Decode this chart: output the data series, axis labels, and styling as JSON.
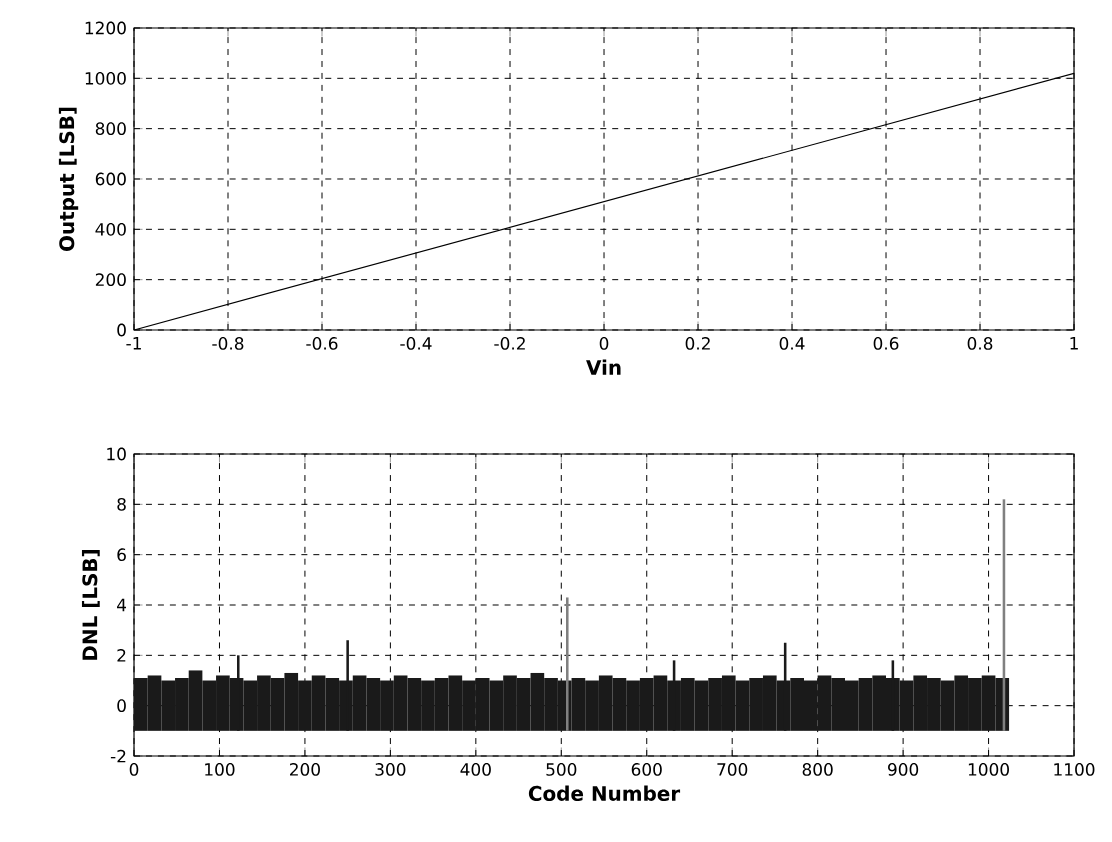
{
  "chart_data": [
    {
      "type": "line",
      "xlabel": "Vin",
      "ylabel": "Output [LSB]",
      "x": [
        -1,
        1
      ],
      "series": [
        {
          "color": "#000000",
          "values": [
            0,
            1020
          ]
        }
      ],
      "xlim": [
        -1,
        1
      ],
      "xticks": [
        -1,
        -0.8,
        -0.6,
        -0.4,
        -0.2,
        0,
        0.2,
        0.4,
        0.6,
        0.8,
        1
      ],
      "ylim": [
        0,
        1200
      ],
      "yticks": [
        0,
        200,
        400,
        600,
        800,
        1000,
        1200
      ],
      "grid": true
    },
    {
      "type": "bar",
      "xlabel": "Code Number",
      "ylabel": "DNL [LSB]",
      "series": [
        {
          "color": "#1a1a1a",
          "x": [
            0,
            16,
            32,
            48,
            64,
            80,
            96,
            112,
            128,
            144,
            160,
            176,
            192,
            208,
            224,
            240,
            256,
            272,
            288,
            304,
            320,
            336,
            352,
            368,
            384,
            400,
            416,
            432,
            448,
            464,
            480,
            496,
            512,
            528,
            544,
            560,
            576,
            592,
            608,
            624,
            640,
            656,
            672,
            688,
            704,
            720,
            736,
            752,
            768,
            784,
            800,
            816,
            832,
            848,
            864,
            880,
            896,
            912,
            928,
            944,
            960,
            976,
            992,
            1008
          ],
          "base": [
            -1,
            -1,
            -1,
            -1,
            -1,
            -1,
            -1,
            -1,
            -1,
            -1,
            -1,
            -1,
            -1,
            -1,
            -1,
            -1,
            -1,
            -1,
            -1,
            -1,
            -1,
            -1,
            -1,
            -1,
            -1,
            -1,
            -1,
            -1,
            -1,
            -1,
            -1,
            -1,
            -1,
            -1,
            -1,
            -1,
            -1,
            -1,
            -1,
            -1,
            -1,
            -1,
            -1,
            -1,
            -1,
            -1,
            -1,
            -1,
            -1,
            -1,
            -1,
            -1,
            -1,
            -1,
            -1,
            -1,
            -1,
            -1,
            -1,
            -1,
            -1,
            -1,
            -1,
            -1
          ],
          "values": [
            2.1,
            2.2,
            2.0,
            2.1,
            2.4,
            2.0,
            2.2,
            2.1,
            2.0,
            2.2,
            2.1,
            2.3,
            2.0,
            2.2,
            2.1,
            2.0,
            2.2,
            2.1,
            2.0,
            2.2,
            2.1,
            2.0,
            2.1,
            2.2,
            2.0,
            2.1,
            2.0,
            2.2,
            2.1,
            2.3,
            2.1,
            2.0,
            2.1,
            2.0,
            2.2,
            2.1,
            2.0,
            2.1,
            2.2,
            2.0,
            2.1,
            2.0,
            2.1,
            2.2,
            2.0,
            2.1,
            2.2,
            2.0,
            2.1,
            2.0,
            2.2,
            2.1,
            2.0,
            2.1,
            2.2,
            2.1,
            2.0,
            2.2,
            2.1,
            2.0,
            2.2,
            2.1,
            2.2,
            2.1
          ]
        },
        {
          "colors": [
            "#1a1a1a",
            "#1a1a1a",
            "#808080",
            "#1a1a1a",
            "#1a1a1a",
            "#1a1a1a",
            "#808080"
          ],
          "x": [
            122,
            250,
            507,
            632,
            762,
            888,
            1018
          ],
          "base": [
            -1,
            -1,
            -1,
            -1,
            -1,
            -1,
            -1
          ],
          "values": [
            3.0,
            3.6,
            5.3,
            2.8,
            3.5,
            2.8,
            9.2
          ]
        }
      ],
      "xlim": [
        0,
        1100
      ],
      "xticks": [
        0,
        100,
        200,
        300,
        400,
        500,
        600,
        700,
        800,
        900,
        1000,
        1100
      ],
      "ylim": [
        -2,
        10
      ],
      "yticks": [
        -2,
        0,
        2,
        4,
        6,
        8,
        10
      ],
      "grid": true
    }
  ]
}
